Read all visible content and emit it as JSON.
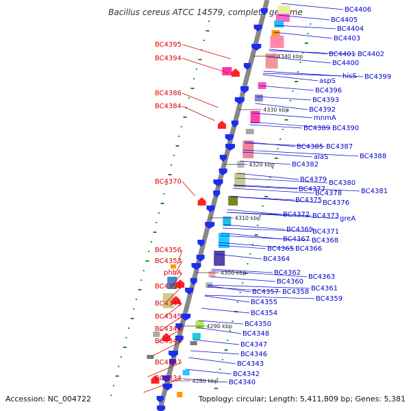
{
  "title": "Bacillus cereus ATCC 14579, complete genome",
  "footer": {
    "accession": "Accession: NC_004722",
    "summary": "Topology: circular; Length: 5,411,809 bp; Genes: 5,381"
  },
  "colors": {
    "left_label": "#dd0000",
    "right_label": "#0000cc",
    "backbone": "#888888",
    "forward_arrow": "#ff2222",
    "reverse_arrow": "#1a2ef0",
    "tick": "#1a8a1a"
  },
  "kbp_marks": [
    "4340 kbp",
    "4330 kbp",
    "4320 kbp",
    "4310 kbp",
    "4300 kbp",
    "4290 kbp",
    "4280 kbp"
  ],
  "left_labels": [
    "BC4395",
    "BC4394",
    "BC4386",
    "BC4384",
    "BC4370",
    "BC4356",
    "BC4353",
    "phhA",
    "BC4351",
    "BC4349",
    "BC4345",
    "BC4344",
    "BC4341",
    "BC4337",
    "BC4334"
  ],
  "right_labels": [
    "BC4406",
    "BC4405",
    "BC4404",
    "BC4403",
    "BC4401",
    "BC4402",
    "BC4400",
    "hisS",
    "BC4399",
    "aspS",
    "BC4396",
    "BC4393",
    "BC4392",
    "mnmA",
    "BC4389",
    "BC4390",
    "BC4385",
    "BC4387",
    "BC4388",
    "alaS",
    "BC4382",
    "BC4379",
    "BC4380",
    "BC4377",
    "BC4381",
    "BC4378",
    "BC4375",
    "BC4376",
    "BC4372",
    "BC4373",
    "greA",
    "BC4369",
    "BC4371",
    "BC4367",
    "BC4368",
    "BC4365",
    "BC4366",
    "BC4364",
    "BC4362",
    "BC4363",
    "BC4360",
    "BC4361",
    "BC4357",
    "BC4358",
    "BC4359",
    "BC4355",
    "BC4354",
    "BC4350",
    "BC4348",
    "BC4347",
    "BC4346",
    "BC4343",
    "BC4342",
    "BC4340"
  ]
}
